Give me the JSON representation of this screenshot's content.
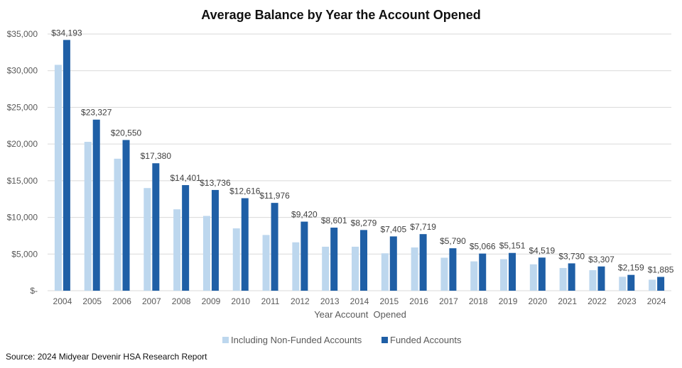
{
  "chart_data": {
    "type": "bar",
    "title": "Average Balance by Year the Account Opened",
    "xlabel": "Year Account  Opened",
    "ylabel": "",
    "ylim": [
      0,
      35000
    ],
    "yticks": [
      0,
      5000,
      10000,
      15000,
      20000,
      25000,
      30000,
      35000
    ],
    "ytick_labels": [
      "$-",
      "$5,000",
      "$10,000",
      "$15,000",
      "$20,000",
      "$25,000",
      "$30,000",
      "$35,000"
    ],
    "grid": true,
    "legend_position": "bottom",
    "categories": [
      "2004",
      "2005",
      "2006",
      "2007",
      "2008",
      "2009",
      "2010",
      "2011",
      "2012",
      "2013",
      "2014",
      "2015",
      "2016",
      "2017",
      "2018",
      "2019",
      "2020",
      "2021",
      "2022",
      "2023",
      "2024"
    ],
    "series": [
      {
        "name": "Including Non-Funded Accounts",
        "color": "#bdd7ee",
        "values": [
          30800,
          20300,
          18000,
          14000,
          11100,
          10200,
          8500,
          7600,
          6600,
          6000,
          6000,
          5100,
          5900,
          4500,
          4000,
          4300,
          3600,
          3100,
          2800,
          1900,
          1500
        ]
      },
      {
        "name": "Funded Accounts",
        "color": "#1f5fa6",
        "values": [
          34193,
          23327,
          20550,
          17380,
          14401,
          13736,
          12616,
          11976,
          9420,
          8601,
          8279,
          7405,
          7719,
          5790,
          5066,
          5151,
          4519,
          3730,
          3307,
          2159,
          1885
        ],
        "data_labels": [
          "$34,193",
          "$23,327",
          "$20,550",
          "$17,380",
          "$14,401",
          "$13,736",
          "$12,616",
          "$11,976",
          "$9,420",
          "$8,601",
          "$8,279",
          "$7,405",
          "$7,719",
          "$5,790",
          "$5,066",
          "$5,151",
          "$4,519",
          "$3,730",
          "$3,307",
          "$2,159",
          "$1,885"
        ]
      }
    ]
  },
  "source": "Source: 2024 Midyear Devenir HSA Research Report"
}
